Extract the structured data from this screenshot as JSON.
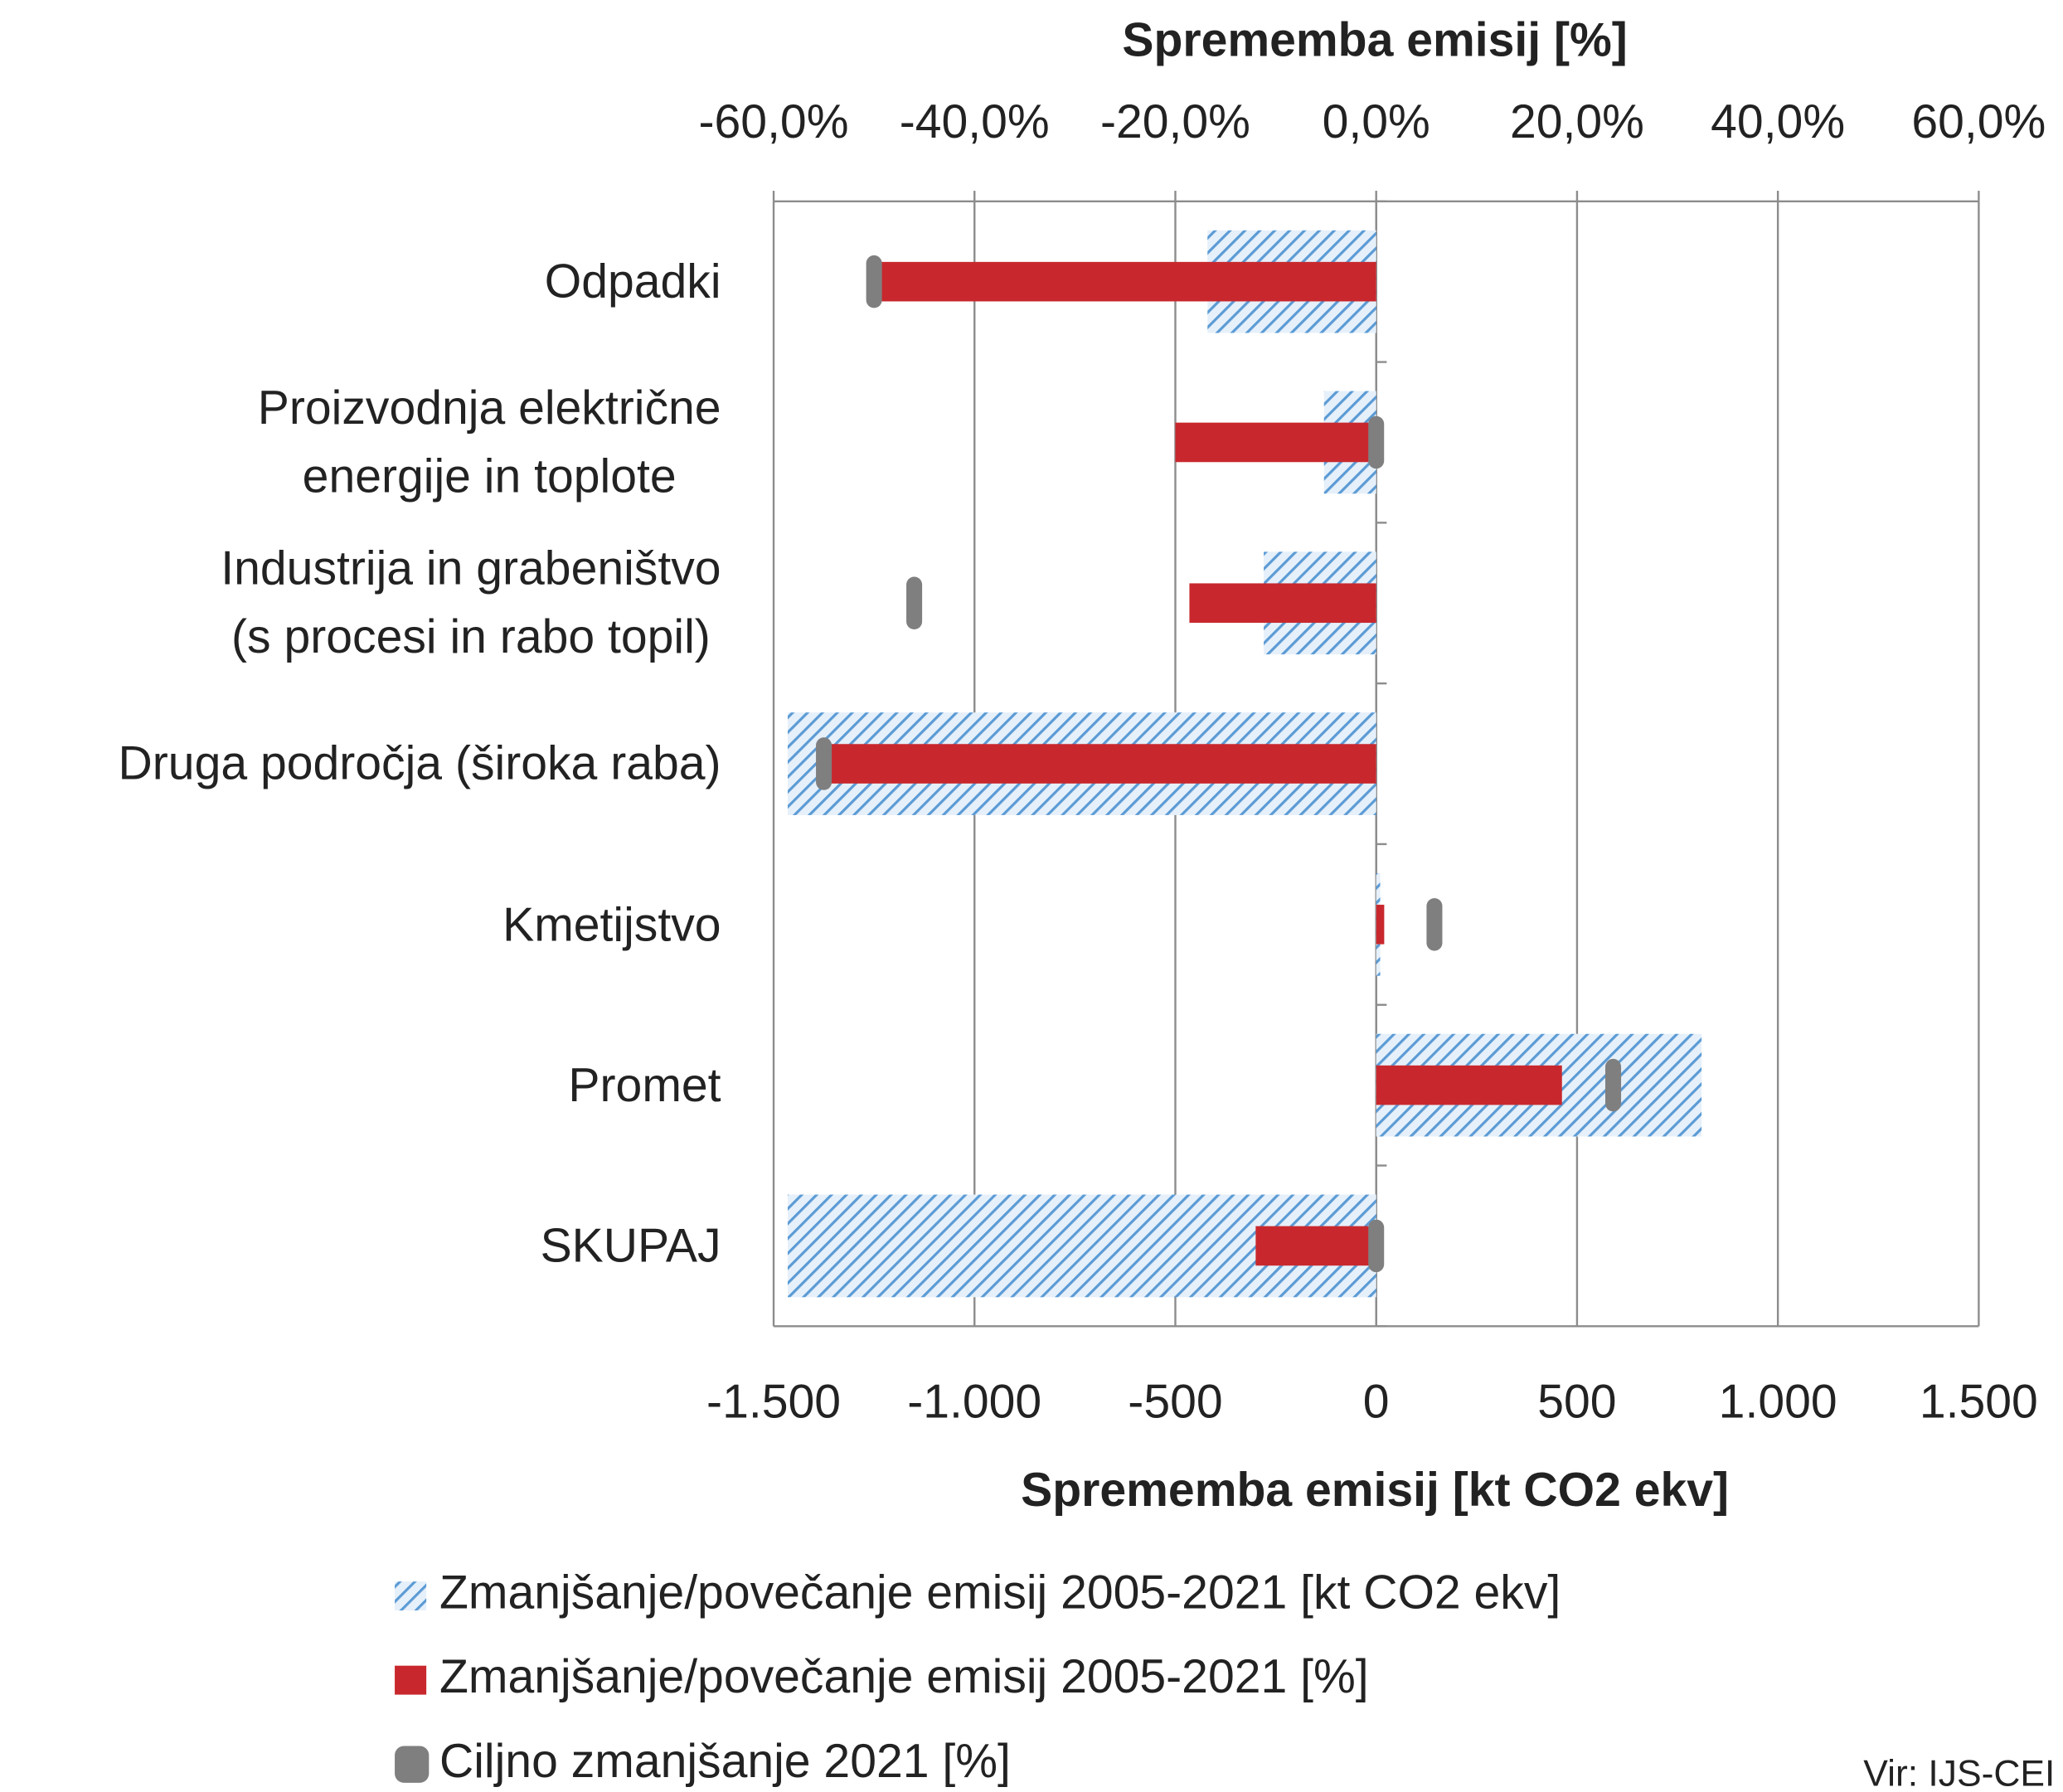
{
  "chart_data": {
    "type": "bar",
    "orientation": "horizontal",
    "x2_title": "Sprememba emisij [%]",
    "x_title": "Sprememba emisij [kt CO2 ekv]",
    "categories": [
      "Odpadki",
      "Proizvodnja električne\nenergije in toplote",
      "Industrija in grabeništvo\n(s procesi in rabo topil)",
      "Druga področja (široka raba)",
      "Kmetijstvo",
      "Promet",
      "SKUPAJ"
    ],
    "series": [
      {
        "name": "Zmanjšanje/povečanje emisij 2005-2021 [kt CO2 ekv]",
        "color": "#5b9bd5",
        "pattern": "hatch",
        "axis": "x",
        "values": [
          -420,
          -130,
          -280,
          -1465,
          10,
          810,
          -1465
        ]
      },
      {
        "name": "Zmanjšanje/povečanje emisij 2005-2021 [%]",
        "color": "#c8282d",
        "axis": "x2",
        "values": [
          -50,
          -20,
          -18.6,
          -54.5,
          0.8,
          18.5,
          -12
        ]
      },
      {
        "name": "Ciljno zmanjšanje 2021 [%]",
        "color": "#7f7f7f",
        "axis": "x2",
        "marker": true,
        "values": [
          -50,
          0,
          -46,
          -55,
          5.8,
          23.6,
          0
        ]
      }
    ],
    "xlim": [
      -1500,
      1500
    ],
    "xticks": [
      {
        "value": -1500,
        "label": "-1.500"
      },
      {
        "value": -1000,
        "label": "-1.000"
      },
      -500,
      0,
      500,
      {
        "value": 1000,
        "label": "1.000"
      },
      {
        "value": 1500,
        "label": "1.500"
      }
    ],
    "x2lim": [
      -60,
      60
    ],
    "x2ticks": [
      {
        "value": -60,
        "label": "-60,0%"
      },
      {
        "value": -40,
        "label": "-40,0%"
      },
      {
        "value": -20,
        "label": "-20,0%"
      },
      {
        "value": 0,
        "label": "0,0%"
      },
      {
        "value": 20,
        "label": "20,0%"
      },
      {
        "value": 40,
        "label": "40,0%"
      },
      {
        "value": 60,
        "label": "60,0%"
      }
    ],
    "grid": true,
    "legend": "bottom",
    "source": "Vir: IJS-CEI"
  }
}
